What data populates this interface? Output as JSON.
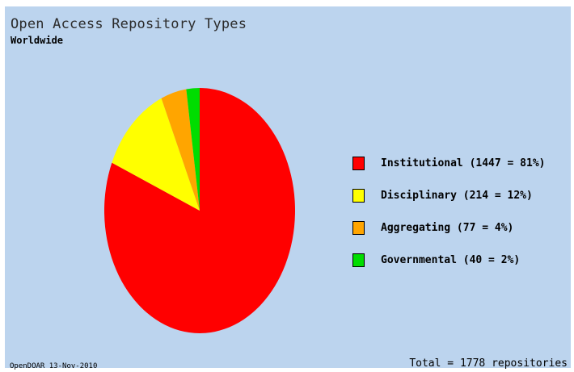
{
  "header": {
    "title": "Open Access Repository Types",
    "subtitle": "Worldwide"
  },
  "footer": {
    "source": "OpenDOAR 13-Nov-2010",
    "total": "Total = 1778 repositories"
  },
  "chart_data": {
    "type": "pie",
    "title": "Open Access Repository Types",
    "subtitle": "Worldwide",
    "legend_position": "right",
    "slices": [
      {
        "name": "Institutional",
        "value": 1447,
        "percent": 81,
        "color": "#ff0000",
        "label": "Institutional (1447 = 81%)"
      },
      {
        "name": "Disciplinary",
        "value": 214,
        "percent": 12,
        "color": "#ffff00",
        "label": "Disciplinary (214 = 12%)"
      },
      {
        "name": "Aggregating",
        "value": 77,
        "percent": 4,
        "color": "#ffa500",
        "label": "Aggregating (77 = 4%)"
      },
      {
        "name": "Governmental",
        "value": 40,
        "percent": 2,
        "color": "#00dd00",
        "label": "Governmental (40 = 2%)"
      }
    ],
    "total": 1778
  }
}
